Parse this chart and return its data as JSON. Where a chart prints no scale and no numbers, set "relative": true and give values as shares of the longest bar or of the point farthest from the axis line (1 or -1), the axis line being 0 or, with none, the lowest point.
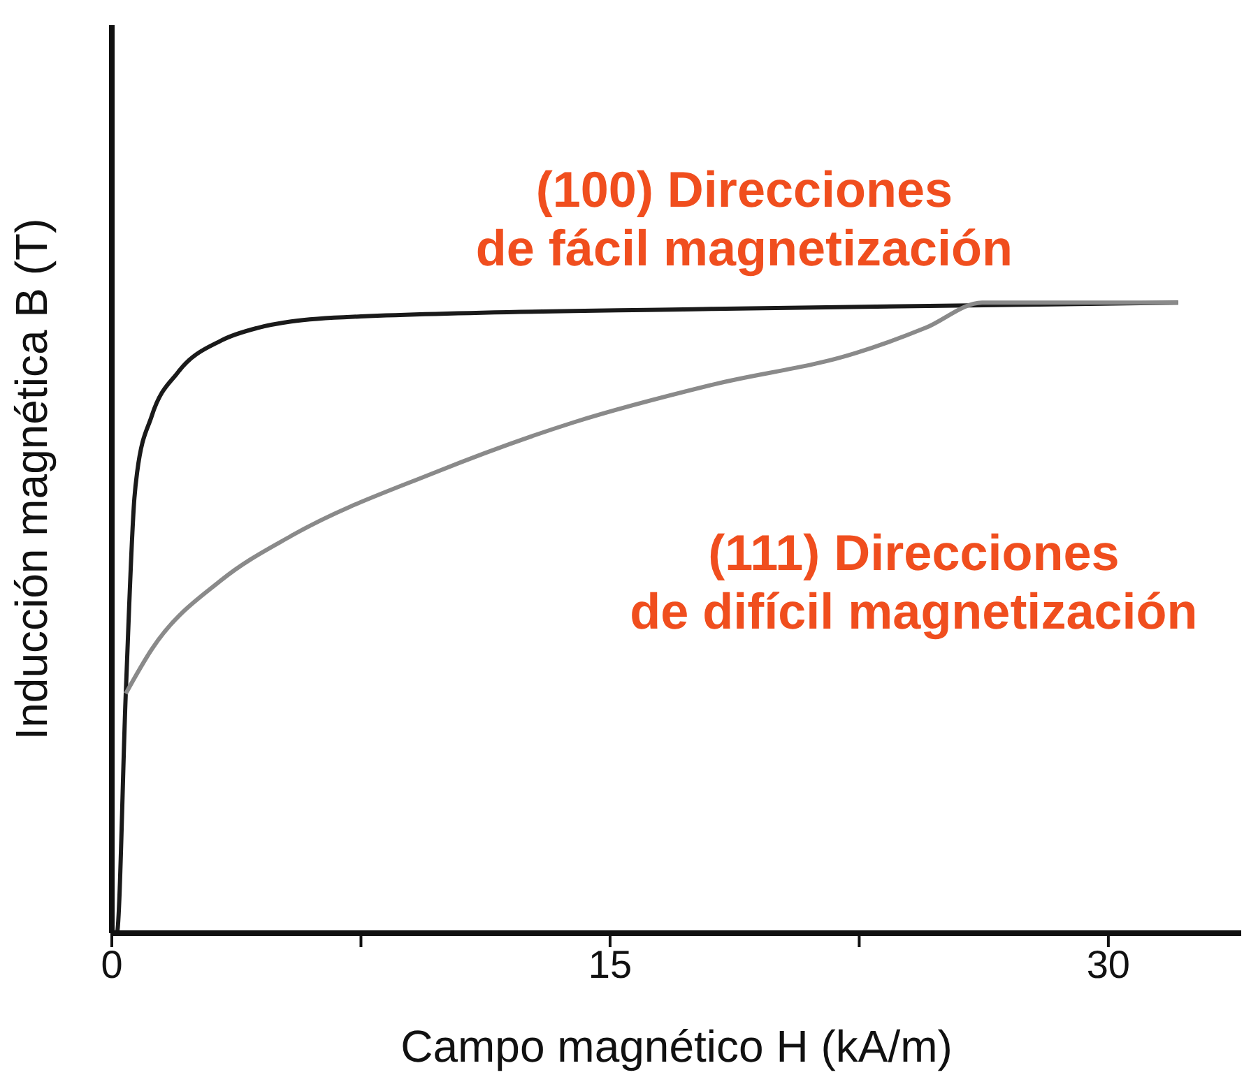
{
  "chart_data": {
    "type": "line",
    "relative": true,
    "xlabel": "Campo magnético H (kA/m)",
    "ylabel": "Inducción magnética B (T)",
    "xlim": [
      0,
      34
    ],
    "xticks": [
      0,
      {
        "value": 7.5,
        "label": null
      },
      15,
      {
        "value": 22.5,
        "label": null
      },
      30
    ],
    "grid": false,
    "marker": "none",
    "line_style": "solid",
    "tick_labels": "x",
    "series": [
      {
        "name": "(100) Direcciones\nde fácil magnetización",
        "color": "#1a1a1a",
        "x": [
          0,
          0.15,
          0.42,
          0.68,
          0.76,
          1.2,
          2.0,
          3.3,
          4.4,
          5.4,
          7.5,
          18.1,
          32.1
        ],
        "values": [
          0,
          0,
          0.38,
          0.69,
          0.73,
          0.82,
          0.89,
          0.94,
          0.96,
          0.97,
          0.978,
          0.99,
          1
        ]
      },
      {
        "name": "(111) Direcciones\nde difícil magnetización",
        "color": "#8a8a8a",
        "x": [
          0.42,
          1.2,
          3.3,
          5.4,
          9.7,
          13.9,
          18.1,
          22.4,
          24.5,
          26.2,
          32.1
        ],
        "values": [
          0.38,
          0.45,
          0.56,
          0.63,
          0.73,
          0.81,
          0.87,
          0.92,
          0.96,
          1,
          1
        ]
      }
    ]
  }
}
